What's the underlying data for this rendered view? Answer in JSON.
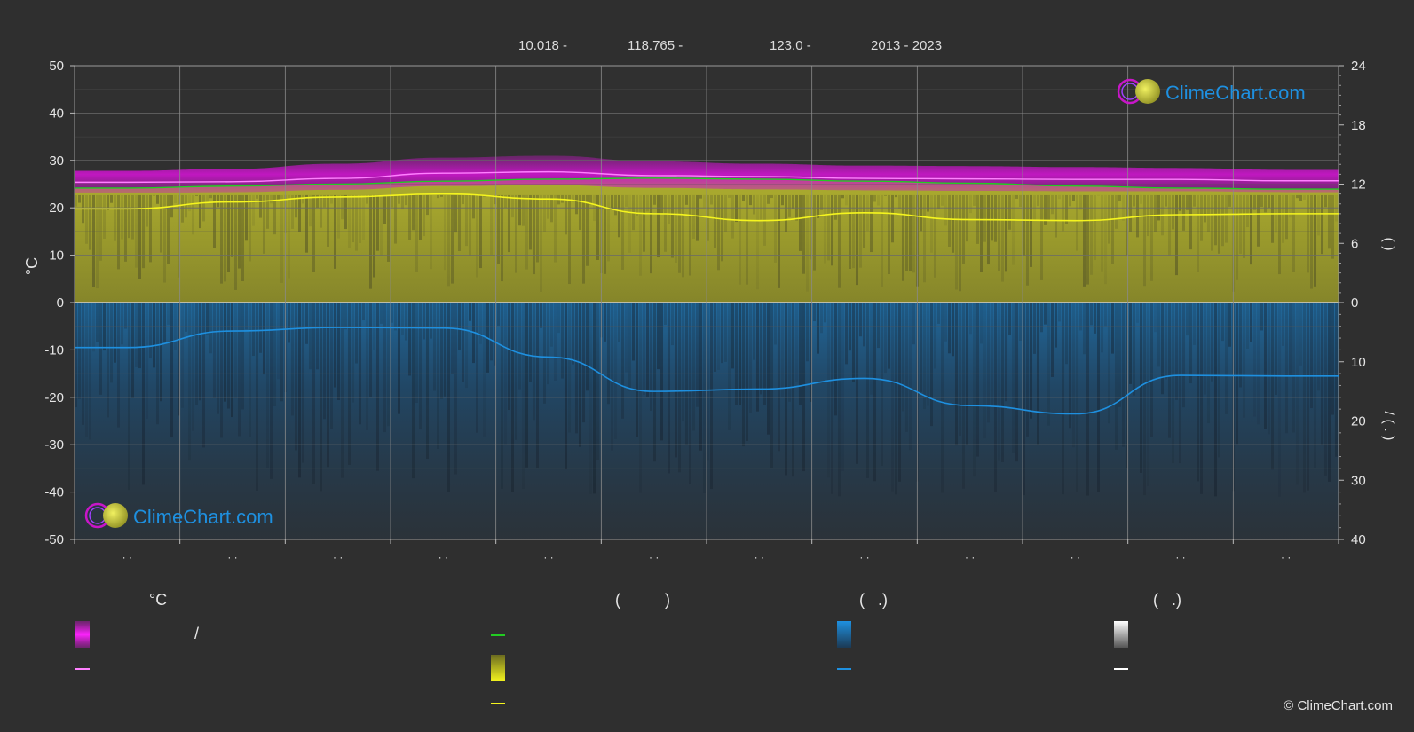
{
  "header": {
    "lat": "10.018 -",
    "lon": "118.765 -",
    "elev": "123.0 -",
    "years": "2013 - 2023"
  },
  "axes": {
    "left_unit": "°C",
    "left_ticks": [
      "50",
      "40",
      "30",
      "20",
      "10",
      "0",
      "-10",
      "-20",
      "-30",
      "-40",
      "-50"
    ],
    "right_top_ticks": [
      "24",
      "18",
      "12",
      "6",
      "0"
    ],
    "right_bottom_ticks": [
      "10",
      "20",
      "30",
      "40"
    ],
    "right_label_top": "(   )",
    "right_label_bottom": "/   (  .  )",
    "month_ticks": [
      "· ·",
      "· ·",
      "· ·",
      "· ·",
      "· ·",
      "· ·",
      "· ·",
      "· ·",
      "· ·",
      "· ·",
      "· ·",
      "· ·"
    ]
  },
  "logo": {
    "text": "ClimeChart.com"
  },
  "legend": {
    "col1_heading": "°C",
    "col1_range_sep": "/",
    "col2_heading": "(          )",
    "col3_heading": "(   .)",
    "col4_heading": "(   .)"
  },
  "copyright": "© ClimeChart.com",
  "colors": {
    "background": "#2f2f2f",
    "grid": "#5a5a5a",
    "temp_band": "#c816c8",
    "temp_mean_line": "#ff80ff",
    "daylight_line": "#22cc22",
    "sunshine_band": "#9b9b2e",
    "sunshine_line": "#f5f51e",
    "rain_band": "#1f5f8f",
    "rain_line": "#1e90e0",
    "snow_line": "#ffffff",
    "logo_text": "#1e90e0"
  },
  "chart_data": {
    "type": "line",
    "x": [
      1,
      2,
      3,
      4,
      5,
      6,
      7,
      8,
      9,
      10,
      11,
      12
    ],
    "ylim_left": [
      -50,
      50
    ],
    "ylim_right_top": [
      0,
      24
    ],
    "ylim_right_bottom": [
      40,
      0
    ],
    "grid": true,
    "series": [
      {
        "axis": "left",
        "values": [
          25.4,
          25.5,
          26.2,
          27.3,
          27.6,
          26.8,
          26.6,
          26.2,
          26.1,
          26.0,
          26.0,
          25.7
        ]
      },
      {
        "axis": "left",
        "values": [
          23.1,
          23.3,
          23.8,
          24.6,
          24.8,
          24.2,
          23.9,
          23.7,
          23.6,
          23.5,
          23.5,
          23.3
        ]
      },
      {
        "axis": "left",
        "values": [
          27.8,
          28.2,
          29.3,
          30.6,
          31.0,
          29.8,
          29.3,
          28.9,
          28.8,
          28.6,
          28.4,
          28.0
        ]
      },
      {
        "axis": "right_top",
        "values": [
          11.6,
          11.8,
          12.0,
          12.3,
          12.5,
          12.6,
          12.5,
          12.3,
          12.1,
          11.8,
          11.6,
          11.5
        ]
      },
      {
        "axis": "right_top",
        "values": [
          9.5,
          10.2,
          10.7,
          11.0,
          10.5,
          9.0,
          8.3,
          9.1,
          8.4,
          8.3,
          8.9,
          9.0
        ]
      },
      {
        "axis": "right_bottom",
        "values": [
          7.6,
          4.8,
          4.2,
          4.3,
          9.2,
          15.0,
          14.6,
          12.8,
          17.4,
          18.8,
          12.3,
          12.4
        ]
      }
    ]
  }
}
